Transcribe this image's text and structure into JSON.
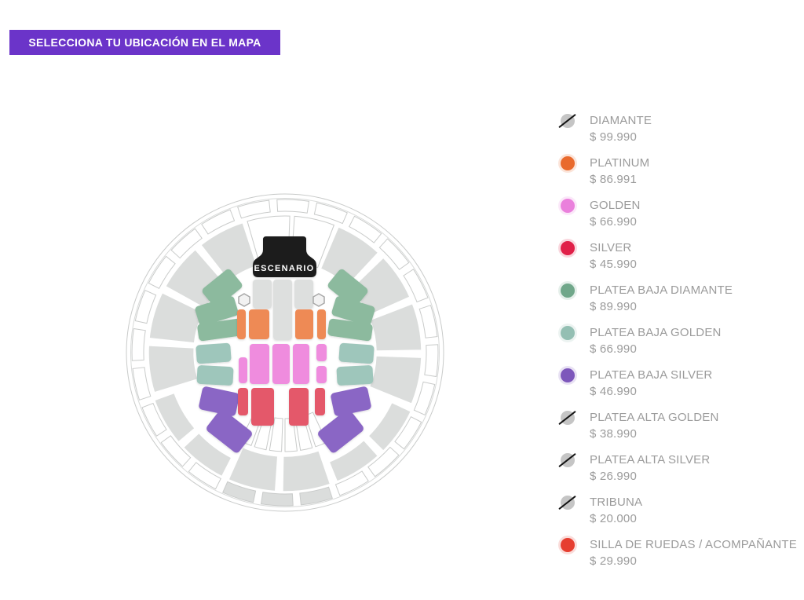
{
  "header": {
    "title": "SELECCIONA TU UBICACIÓN EN EL MAPA",
    "background": "#6B34C9",
    "text_color": "#FFFFFF"
  },
  "map": {
    "stage_label": "ESCENARIO",
    "palette": {
      "platinum": "#EE8A55",
      "golden": "#EF8CDE",
      "silver": "#E4596B",
      "platea_baja_diamante": "#8CBA9E",
      "platea_baja_golden": "#9EC6BB",
      "platea_baja_silver": "#8A66C5",
      "sold_out_fill": "#DBDDDC",
      "floor_sold_out": "#DDDFDE",
      "outline_stroke": "#C9CBCA",
      "stage_fill": "#1A1A1A"
    }
  },
  "legend": {
    "items": [
      {
        "id": "diamante",
        "label": "DIAMANTE",
        "price": "$ 99.990",
        "color": "#C5C5C5",
        "sold_out": true
      },
      {
        "id": "platinum",
        "label": "PLATINUM",
        "price": "$ 86.991",
        "color": "#E96A2D",
        "sold_out": false
      },
      {
        "id": "golden",
        "label": "GOLDEN",
        "price": "$ 66.990",
        "color": "#EA80DC",
        "sold_out": false
      },
      {
        "id": "silver",
        "label": "SILVER",
        "price": "$ 45.990",
        "color": "#E02048",
        "sold_out": false
      },
      {
        "id": "platea-baja-diamante",
        "label": "PLATEA BAJA DIAMANTE",
        "price": "$ 89.990",
        "color": "#70A78A",
        "sold_out": false
      },
      {
        "id": "platea-baja-golden",
        "label": "PLATEA BAJA GOLDEN",
        "price": "$ 66.990",
        "color": "#94BFB3",
        "sold_out": false
      },
      {
        "id": "platea-baja-silver",
        "label": "PLATEA BAJA SILVER",
        "price": "$ 46.990",
        "color": "#7D57BB",
        "sold_out": false
      },
      {
        "id": "platea-alta-golden",
        "label": "PLATEA ALTA GOLDEN",
        "price": "$ 38.990",
        "color": "#C5C5C5",
        "sold_out": true
      },
      {
        "id": "platea-alta-silver",
        "label": "PLATEA ALTA SILVER",
        "price": "$ 26.990",
        "color": "#C5C5C5",
        "sold_out": true
      },
      {
        "id": "tribuna",
        "label": "TRIBUNA",
        "price": "$ 20.000",
        "color": "#C5C5C5",
        "sold_out": true
      },
      {
        "id": "silla-de-ruedas",
        "label": "SILLA DE RUEDAS / ACOMPAÑANTE",
        "price": "$ 29.990",
        "color": "#E63E30",
        "sold_out": false
      }
    ]
  }
}
